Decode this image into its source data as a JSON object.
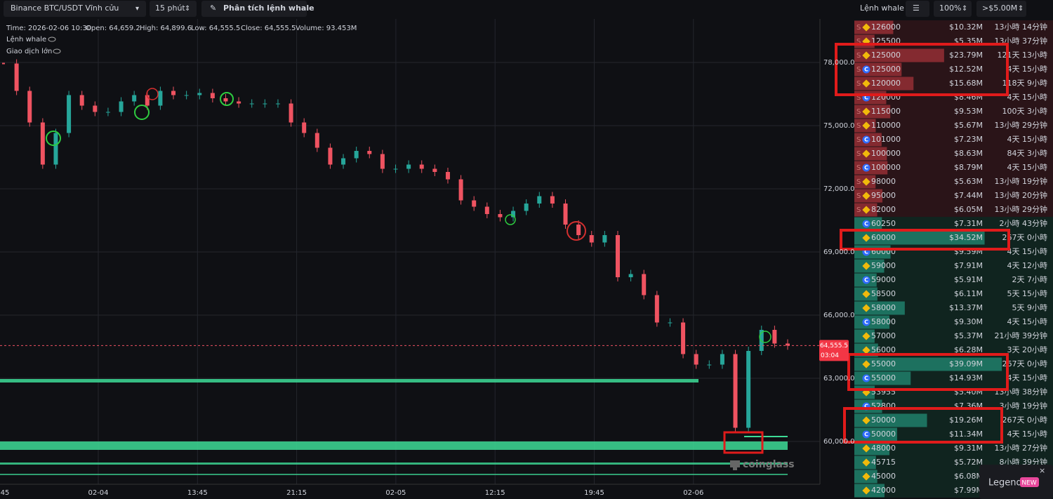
{
  "toolbar": {
    "symbol": "Binance BTC/USDT Vĩnh cửu",
    "interval": "15 phút",
    "whale_button": "Phân tích lệnh whale"
  },
  "info": {
    "time": "Time: 2026-02-06 10:30",
    "open": "Open: 64,659.2",
    "high": "High: 64,899.6",
    "low": "Low: 64,555.5",
    "close": "Close: 64,555.5",
    "volume": "Volume: 93.453M"
  },
  "overlays": [
    "Lệnh whale",
    "Giao dịch lớn"
  ],
  "chart_data": {
    "type": "line",
    "x_labels": [
      "45",
      "02-04",
      "13:45",
      "21:15",
      "02-05",
      "12:15",
      "19:45",
      "02-06"
    ],
    "series": [
      {
        "values": [
          77950,
          76650,
          75150,
          73150,
          74650,
          76450,
          75950,
          75650,
          75650,
          76150,
          76450,
          75950,
          76650,
          76450,
          76450,
          76550,
          76300,
          76150,
          76050,
          76050,
          76050,
          76050,
          75150,
          74650,
          73950,
          73150,
          73450,
          73800,
          73650,
          72950,
          72950,
          73150,
          72950,
          72800,
          72450,
          71450,
          71150,
          70800,
          70650,
          70950,
          71300,
          71650,
          71300,
          70300,
          69800,
          69450,
          69800,
          67800,
          67950,
          66950,
          65650,
          65650,
          64150,
          63650,
          63650,
          64150,
          60650,
          64300,
          65300,
          64650,
          64555.5
        ]
      }
    ],
    "up_color": "#26a69a",
    "down_color": "#ef5361",
    "ylim": [
      58000,
      80000
    ],
    "yticks": [
      {
        "value": 60000,
        "label": "60,000.0"
      },
      {
        "value": 63000,
        "label": "63,000.0"
      },
      {
        "value": 66000,
        "label": "66,000.0"
      },
      {
        "value": 69000,
        "label": "69,000.0"
      },
      {
        "value": 72000,
        "label": "72,000.0"
      },
      {
        "value": 75000,
        "label": "75,000.0"
      },
      {
        "value": 78000,
        "label": "78,000.0"
      }
    ],
    "grid": true,
    "last_price": {
      "value": 64555.5,
      "label": "64,555.5"
    },
    "countdown": "03:04"
  },
  "watermark": "coinglass",
  "order_book": {
    "title": "Lệnh whale",
    "zoom": "100%",
    "min_size": ">$5.00M",
    "rows": [
      {
        "side": "S",
        "exchange": "B",
        "price": 126000,
        "amount": {
          "value": 10.32,
          "label": "$10.32M"
        },
        "age": "13小時 14分钟"
      },
      {
        "side": "S",
        "exchange": "B",
        "price": 125500,
        "amount": {
          "value": 5.35,
          "label": "$5.35M"
        },
        "age": "13小時 37分钟"
      },
      {
        "side": "S",
        "exchange": "B",
        "price": 125000,
        "amount": {
          "value": 23.79,
          "label": "$23.79M"
        },
        "age": "121天 13小時"
      },
      {
        "side": "S",
        "exchange": "C",
        "price": 125000,
        "amount": {
          "value": 12.52,
          "label": "$12.52M"
        },
        "age": "4天 15小時"
      },
      {
        "side": "S",
        "exchange": "B",
        "price": 120000,
        "amount": {
          "value": 15.68,
          "label": "$15.68M"
        },
        "age": "118天 9小時"
      },
      {
        "side": "S",
        "exchange": "C",
        "price": 120000,
        "amount": {
          "value": 8.46,
          "label": "$8.46M"
        },
        "age": "4天 15小時"
      },
      {
        "side": "S",
        "exchange": "B",
        "price": 115000,
        "amount": {
          "value": 9.53,
          "label": "$9.53M"
        },
        "age": "100天 3小時"
      },
      {
        "side": "S",
        "exchange": "B",
        "price": 110000,
        "amount": {
          "value": 5.67,
          "label": "$5.67M"
        },
        "age": "13小時 29分钟"
      },
      {
        "side": "S",
        "exchange": "C",
        "price": 101000,
        "amount": {
          "value": 7.23,
          "label": "$7.23M"
        },
        "age": "4天 15小時"
      },
      {
        "side": "S",
        "exchange": "B",
        "price": 100000,
        "amount": {
          "value": 8.63,
          "label": "$8.63M"
        },
        "age": "84天 3小時"
      },
      {
        "side": "S",
        "exchange": "C",
        "price": 100000,
        "amount": {
          "value": 8.79,
          "label": "$8.79M"
        },
        "age": "4天 15小時"
      },
      {
        "side": "S",
        "exchange": "B",
        "price": 98000,
        "amount": {
          "value": 5.63,
          "label": "$5.63M"
        },
        "age": "13小時 19分钟"
      },
      {
        "side": "S",
        "exchange": "B",
        "price": 95000,
        "amount": {
          "value": 7.44,
          "label": "$7.44M"
        },
        "age": "13小時 20分钟"
      },
      {
        "side": "S",
        "exchange": "B",
        "price": 82000,
        "amount": {
          "value": 6.05,
          "label": "$6.05M"
        },
        "age": "13小時 29分钟"
      },
      {
        "exchange": "C",
        "price": 60250,
        "amount": {
          "value": 7.31,
          "label": "$7.31M"
        },
        "age": "2小時 43分钟"
      },
      {
        "exchange": "B",
        "price": 60000,
        "amount": {
          "value": 34.52,
          "label": "$34.52M"
        },
        "age": "267天 0小時"
      },
      {
        "exchange": "C",
        "price": 60000,
        "amount": {
          "value": 9.59,
          "label": "$9.59M"
        },
        "age": "4天 15小時"
      },
      {
        "exchange": "B",
        "price": 59000,
        "amount": {
          "value": 7.91,
          "label": "$7.91M"
        },
        "age": "4天 12小時"
      },
      {
        "exchange": "C",
        "price": 59000,
        "amount": {
          "value": 5.91,
          "label": "$5.91M"
        },
        "age": "2天 7小時"
      },
      {
        "exchange": "B",
        "price": 58500,
        "amount": {
          "value": 6.11,
          "label": "$6.11M"
        },
        "age": "5天 15小時"
      },
      {
        "exchange": "B",
        "price": 58000,
        "amount": {
          "value": 13.37,
          "label": "$13.37M"
        },
        "age": "5天 9小時"
      },
      {
        "exchange": "C",
        "price": 58000,
        "amount": {
          "value": 9.3,
          "label": "$9.30M"
        },
        "age": "4天 15小時"
      },
      {
        "exchange": "B",
        "price": 57000,
        "amount": {
          "value": 5.37,
          "label": "$5.37M"
        },
        "age": "21小時 39分钟"
      },
      {
        "exchange": "B",
        "price": 56000,
        "amount": {
          "value": 6.28,
          "label": "$6.28M"
        },
        "age": "3天 20小時"
      },
      {
        "exchange": "B",
        "price": 55000,
        "amount": {
          "value": 39.09,
          "label": "$39.09M"
        },
        "age": "267天 0小時"
      },
      {
        "exchange": "C",
        "price": 55000,
        "amount": {
          "value": 14.93,
          "label": "$14.93M"
        },
        "age": "4天 15小時"
      },
      {
        "exchange": "B",
        "price": 53955,
        "amount": {
          "value": 5.4,
          "label": "$5.40M"
        },
        "age": "13小時 38分钟"
      },
      {
        "exchange": "C",
        "price": 52800,
        "amount": {
          "value": 7.36,
          "label": "$7.36M"
        },
        "age": "3小時 19分钟"
      },
      {
        "exchange": "B",
        "price": 50000,
        "amount": {
          "value": 19.26,
          "label": "$19.26M"
        },
        "age": "267天 0小時"
      },
      {
        "exchange": "C",
        "price": 50000,
        "amount": {
          "value": 11.34,
          "label": "$11.34M"
        },
        "age": "4天 15小時"
      },
      {
        "exchange": "B",
        "price": 48000,
        "amount": {
          "value": 9.31,
          "label": "$9.31M"
        },
        "age": "13小時 27分钟"
      },
      {
        "exchange": "B",
        "price": 45715,
        "amount": {
          "value": 5.72,
          "label": "$5.72M"
        },
        "age": "8小時 39分钟"
      },
      {
        "exchange": "B",
        "price": 45000,
        "amount": {
          "value": 6.08,
          "label": "$6.08M"
        }
      },
      {
        "exchange": "B",
        "price": 42000,
        "amount": {
          "value": 7.99,
          "label": "$7.99M"
        }
      }
    ]
  },
  "legend": {
    "label": "Legend",
    "badge": "NEW"
  }
}
